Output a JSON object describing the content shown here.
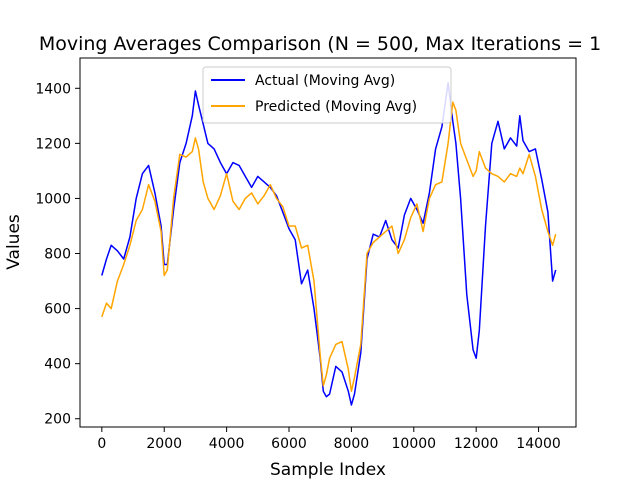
{
  "chart_data": {
    "type": "line",
    "title": "Moving Averages Comparison (N = 500, Max Iterations = 1",
    "xlabel": "Sample Index",
    "ylabel": "Values",
    "xlim": [
      -700,
      15200
    ],
    "ylim": [
      170,
      1510
    ],
    "xticks": [
      0,
      2000,
      4000,
      6000,
      8000,
      10000,
      12000,
      14000
    ],
    "yticks": [
      200,
      400,
      600,
      800,
      1000,
      1200,
      1400
    ],
    "legend": {
      "position": "upper-center"
    },
    "grid": false,
    "series": [
      {
        "name": "Actual (Moving Avg)",
        "color": "#0000ff",
        "x": [
          0,
          150,
          300,
          500,
          700,
          900,
          1100,
          1300,
          1500,
          1700,
          1900,
          2000,
          2100,
          2300,
          2500,
          2700,
          2900,
          3000,
          3100,
          3250,
          3400,
          3600,
          3800,
          4000,
          4200,
          4400,
          4600,
          4800,
          5000,
          5200,
          5400,
          5600,
          5800,
          6000,
          6200,
          6400,
          6600,
          6800,
          7000,
          7100,
          7200,
          7300,
          7500,
          7700,
          7900,
          8000,
          8100,
          8300,
          8500,
          8700,
          8900,
          9100,
          9300,
          9500,
          9700,
          9900,
          10100,
          10300,
          10500,
          10700,
          10900,
          11100,
          11250,
          11350,
          11500,
          11700,
          11900,
          12000,
          12100,
          12300,
          12500,
          12700,
          12900,
          13100,
          13300,
          13400,
          13500,
          13700,
          13900,
          14100,
          14300,
          14450,
          14550
        ],
        "values": [
          720,
          780,
          830,
          810,
          780,
          860,
          1000,
          1090,
          1120,
          1020,
          900,
          760,
          760,
          960,
          1130,
          1200,
          1300,
          1390,
          1340,
          1270,
          1200,
          1180,
          1130,
          1090,
          1130,
          1120,
          1080,
          1040,
          1080,
          1060,
          1040,
          1010,
          950,
          890,
          850,
          690,
          740,
          600,
          420,
          300,
          280,
          290,
          390,
          370,
          300,
          250,
          290,
          440,
          780,
          870,
          860,
          920,
          850,
          820,
          940,
          1000,
          960,
          910,
          1020,
          1180,
          1260,
          1420,
          1280,
          1200,
          1000,
          650,
          450,
          420,
          520,
          900,
          1200,
          1280,
          1180,
          1220,
          1190,
          1300,
          1210,
          1170,
          1180,
          1070,
          950,
          700,
          740
        ]
      },
      {
        "name": "Predicted (Moving Avg)",
        "color": "#ffa500",
        "x": [
          0,
          150,
          300,
          500,
          700,
          900,
          1100,
          1300,
          1500,
          1700,
          1900,
          2000,
          2100,
          2300,
          2500,
          2700,
          2900,
          3000,
          3100,
          3250,
          3400,
          3600,
          3800,
          4000,
          4200,
          4400,
          4600,
          4800,
          5000,
          5200,
          5400,
          5600,
          5800,
          6000,
          6200,
          6400,
          6600,
          6800,
          7000,
          7100,
          7200,
          7300,
          7500,
          7700,
          7900,
          8000,
          8100,
          8300,
          8500,
          8700,
          8900,
          9100,
          9300,
          9500,
          9700,
          9900,
          10100,
          10300,
          10500,
          10700,
          10900,
          11100,
          11250,
          11350,
          11500,
          11700,
          11900,
          12000,
          12100,
          12300,
          12500,
          12700,
          12900,
          13100,
          13300,
          13400,
          13500,
          13700,
          13900,
          14100,
          14300,
          14450,
          14550
        ],
        "values": [
          570,
          620,
          600,
          700,
          760,
          830,
          920,
          960,
          1050,
          990,
          880,
          720,
          740,
          1000,
          1160,
          1150,
          1170,
          1220,
          1180,
          1060,
          1000,
          960,
          1010,
          1090,
          990,
          960,
          1000,
          1020,
          980,
          1010,
          1050,
          1000,
          970,
          900,
          900,
          820,
          830,
          700,
          430,
          320,
          360,
          420,
          470,
          480,
          380,
          300,
          350,
          470,
          800,
          840,
          860,
          880,
          900,
          800,
          850,
          930,
          980,
          880,
          1000,
          1050,
          1060,
          1200,
          1350,
          1320,
          1200,
          1140,
          1080,
          1100,
          1170,
          1110,
          1090,
          1080,
          1060,
          1090,
          1080,
          1110,
          1090,
          1160,
          1080,
          960,
          880,
          830,
          870
        ]
      }
    ]
  }
}
